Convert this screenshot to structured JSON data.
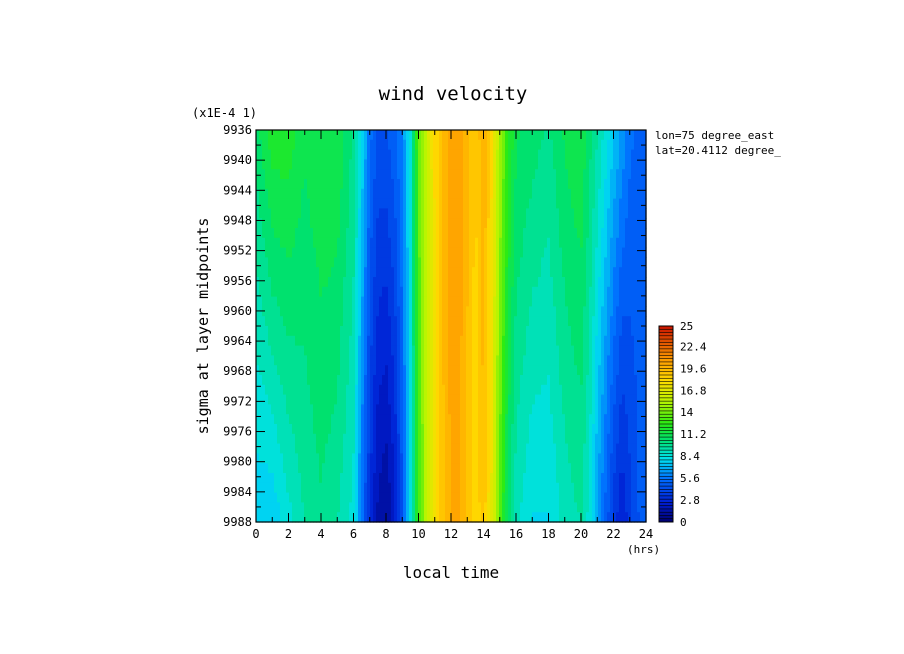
{
  "chart_data": {
    "type": "heatmap",
    "title": "wind velocity",
    "scale_note": "(x1E-4 1)",
    "xlabel": "local time",
    "xunit": "(hrs)",
    "ylabel": "sigma at layer midpoints",
    "annotations": [
      "lon=75 degree_east",
      "lat=20.4112 degree_"
    ],
    "xlim": [
      0,
      24
    ],
    "ylim": [
      9936,
      9988
    ],
    "y_inverted": true,
    "x_ticks": [
      "0",
      "2",
      "4",
      "6",
      "8",
      "10",
      "12",
      "14",
      "16",
      "18",
      "20",
      "22",
      "24"
    ],
    "y_ticks": [
      "9936",
      "9940",
      "9944",
      "9948",
      "9952",
      "9956",
      "9960",
      "9964",
      "9968",
      "9972",
      "9976",
      "9980",
      "9984",
      "9988"
    ],
    "colorbar": {
      "min": 0,
      "max": 25,
      "tick_labels": [
        "0",
        "2.8",
        "5.6",
        "8.4",
        "11.2",
        "14",
        "16.8",
        "19.6",
        "22.4",
        "25"
      ]
    },
    "profile": {
      "x": [
        0,
        1,
        2,
        3,
        4,
        5,
        6,
        6.5,
        7,
        7.5,
        8,
        8.5,
        9,
        9.5,
        10,
        10.5,
        11,
        11.5,
        12,
        12.5,
        13,
        13.5,
        14,
        14.5,
        15,
        15.5,
        16,
        17,
        18,
        19,
        20,
        20.5,
        21,
        21.5,
        22,
        22.5,
        23,
        23.5,
        24
      ],
      "top": [
        10.5,
        12.0,
        12.0,
        11.0,
        11.5,
        11.5,
        10.0,
        8.0,
        5.5,
        4.5,
        4.5,
        5.0,
        6.0,
        8.5,
        13.5,
        16.0,
        18.0,
        19.5,
        20.5,
        20.5,
        19.5,
        18.5,
        20.0,
        18.0,
        15.0,
        12.5,
        11.0,
        10.5,
        10.0,
        11.0,
        11.5,
        10.5,
        9.5,
        8.5,
        7.5,
        6.5,
        5.5,
        5.0,
        4.5
      ],
      "bottom": [
        7.5,
        7.5,
        8.5,
        9.5,
        10.0,
        9.5,
        8.5,
        5.5,
        3.0,
        1.5,
        1.0,
        2.0,
        4.5,
        8.0,
        13.0,
        15.5,
        17.5,
        19.0,
        20.0,
        20.0,
        19.0,
        18.0,
        19.0,
        17.0,
        13.5,
        10.5,
        9.0,
        8.0,
        8.0,
        9.0,
        9.5,
        8.5,
        6.5,
        5.0,
        3.5,
        2.5,
        3.5,
        4.5,
        5.0
      ]
    }
  }
}
